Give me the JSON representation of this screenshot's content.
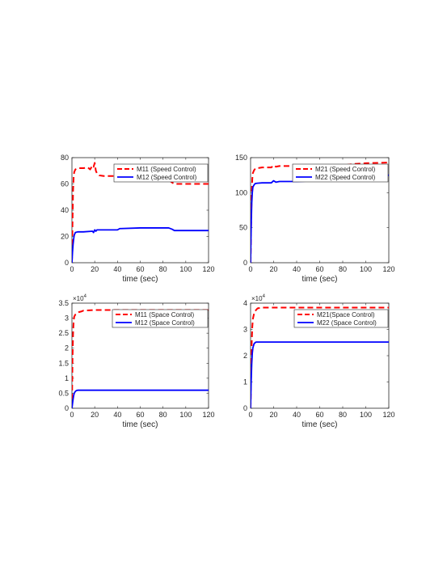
{
  "chart_data": [
    {
      "type": "line",
      "title": "",
      "xlabel": "time (sec)",
      "ylabel": "",
      "xlim": [
        0,
        120
      ],
      "ylim": [
        0,
        80
      ],
      "xticks": [
        0,
        20,
        40,
        60,
        80,
        100,
        120
      ],
      "yticks": [
        0,
        20,
        40,
        60,
        80
      ],
      "y_exponent": "",
      "grid": false,
      "legend_position": "top-right",
      "series": [
        {
          "name": "M11 (Speed Control)",
          "color": "#ff0000",
          "style": "dashed",
          "x": [
            0,
            0.5,
            1,
            1.5,
            2,
            2.5,
            3,
            4,
            6,
            10,
            14,
            16,
            18,
            19,
            20,
            21,
            22,
            24,
            28,
            40,
            60,
            80,
            85,
            88,
            90,
            95,
            100,
            110,
            120
          ],
          "y": [
            0,
            30,
            55,
            65,
            69,
            70,
            71,
            71.5,
            72,
            72,
            72.5,
            71,
            74,
            73,
            76,
            70,
            68,
            66.5,
            66,
            66,
            66,
            66,
            63,
            61,
            60,
            60,
            60,
            60,
            60
          ]
        },
        {
          "name": "M12 (Speed Control)",
          "color": "#0000ff",
          "style": "solid",
          "x": [
            0,
            0.5,
            1,
            1.5,
            2,
            3,
            5,
            10,
            18,
            19,
            20,
            21,
            22,
            25,
            40,
            42,
            43,
            60,
            85,
            88,
            90,
            95,
            100,
            120
          ],
          "y": [
            0,
            8,
            14,
            18,
            21,
            23,
            23.5,
            23.5,
            24,
            23,
            25,
            24,
            25,
            25,
            25,
            26,
            26,
            26.5,
            26.5,
            25.5,
            24.5,
            24.5,
            24.5,
            24.5
          ]
        }
      ]
    },
    {
      "type": "line",
      "title": "",
      "xlabel": "time (sec)",
      "ylabel": "",
      "xlim": [
        0,
        120
      ],
      "ylim": [
        0,
        150
      ],
      "xticks": [
        0,
        20,
        40,
        60,
        80,
        100,
        120
      ],
      "yticks": [
        0,
        50,
        100,
        150
      ],
      "y_exponent": "",
      "grid": false,
      "legend_position": "top-right",
      "series": [
        {
          "name": "M21 (Speed Control)",
          "color": "#ff0000",
          "style": "dashed",
          "x": [
            0,
            0.5,
            1,
            1.5,
            2,
            3,
            4,
            6,
            10,
            18,
            20,
            22,
            25,
            40,
            60,
            80,
            90,
            100,
            120
          ],
          "y": [
            0,
            60,
            100,
            120,
            128,
            132,
            134,
            135,
            136,
            136,
            139,
            137,
            138,
            138,
            139,
            139,
            141,
            142,
            143
          ]
        },
        {
          "name": "M22 (Speed Control)",
          "color": "#0000ff",
          "style": "solid",
          "x": [
            0,
            0.5,
            1,
            1.5,
            2,
            3,
            4,
            6,
            10,
            18,
            20,
            22,
            25,
            40,
            60,
            80,
            90,
            100,
            110,
            120
          ],
          "y": [
            0,
            50,
            85,
            100,
            108,
            111,
            113,
            113.5,
            114,
            114,
            117,
            115,
            116,
            116,
            117,
            118,
            120,
            122,
            124,
            125
          ]
        }
      ]
    },
    {
      "type": "line",
      "title": "",
      "xlabel": "time (sec)",
      "ylabel": "",
      "xlim": [
        0,
        120
      ],
      "ylim": [
        0,
        3.5
      ],
      "xticks": [
        0,
        20,
        40,
        60,
        80,
        100,
        120
      ],
      "yticks": [
        0,
        0.5,
        1,
        1.5,
        2,
        2.5,
        3,
        3.5
      ],
      "y_exponent": "10^4",
      "grid": false,
      "legend_position": "top-right",
      "series": [
        {
          "name": "M11 (Space Control)",
          "color": "#ff0000",
          "style": "dashed",
          "x": [
            0,
            0.5,
            1,
            1.5,
            2,
            3,
            4,
            5,
            6,
            8,
            10,
            20,
            40,
            60,
            80,
            100,
            120
          ],
          "y": [
            0,
            1.6,
            2.5,
            2.9,
            3.05,
            3.12,
            3.15,
            3.18,
            3.2,
            3.22,
            3.25,
            3.27,
            3.27,
            3.27,
            3.27,
            3.27,
            3.27
          ]
        },
        {
          "name": "M12 (Space Control)",
          "color": "#0000ff",
          "style": "solid",
          "x": [
            0,
            0.5,
            1,
            1.5,
            2,
            3,
            4,
            5,
            6,
            8,
            10,
            20,
            40,
            60,
            80,
            100,
            120
          ],
          "y": [
            0,
            0.15,
            0.3,
            0.42,
            0.5,
            0.56,
            0.59,
            0.6,
            0.6,
            0.6,
            0.6,
            0.6,
            0.6,
            0.6,
            0.6,
            0.6,
            0.6
          ]
        }
      ]
    },
    {
      "type": "line",
      "title": "",
      "xlabel": "time (sec)",
      "ylabel": "",
      "xlim": [
        0,
        120
      ],
      "ylim": [
        0,
        4
      ],
      "xticks": [
        0,
        20,
        40,
        60,
        80,
        100,
        120
      ],
      "yticks": [
        0,
        1,
        2,
        3,
        4
      ],
      "y_exponent": "10^4",
      "grid": false,
      "legend_position": "top-right",
      "series": [
        {
          "name": "M21(Space Control)",
          "color": "#ff0000",
          "style": "dashed",
          "x": [
            0,
            0.5,
            1,
            1.5,
            2,
            3,
            4,
            5,
            6,
            8,
            10,
            20,
            40,
            60,
            80,
            100,
            120
          ],
          "y": [
            0,
            1.5,
            2.5,
            3.1,
            3.4,
            3.6,
            3.7,
            3.75,
            3.8,
            3.82,
            3.83,
            3.83,
            3.83,
            3.83,
            3.83,
            3.83,
            3.83
          ]
        },
        {
          "name": "M22 (Space Control)",
          "color": "#0000ff",
          "style": "solid",
          "x": [
            0,
            0.5,
            1,
            1.5,
            2,
            3,
            4,
            5,
            6,
            8,
            10,
            20,
            40,
            60,
            80,
            100,
            120
          ],
          "y": [
            0,
            1.0,
            1.7,
            2.1,
            2.3,
            2.45,
            2.5,
            2.52,
            2.52,
            2.52,
            2.52,
            2.52,
            2.52,
            2.52,
            2.52,
            2.52,
            2.52
          ]
        }
      ]
    }
  ]
}
